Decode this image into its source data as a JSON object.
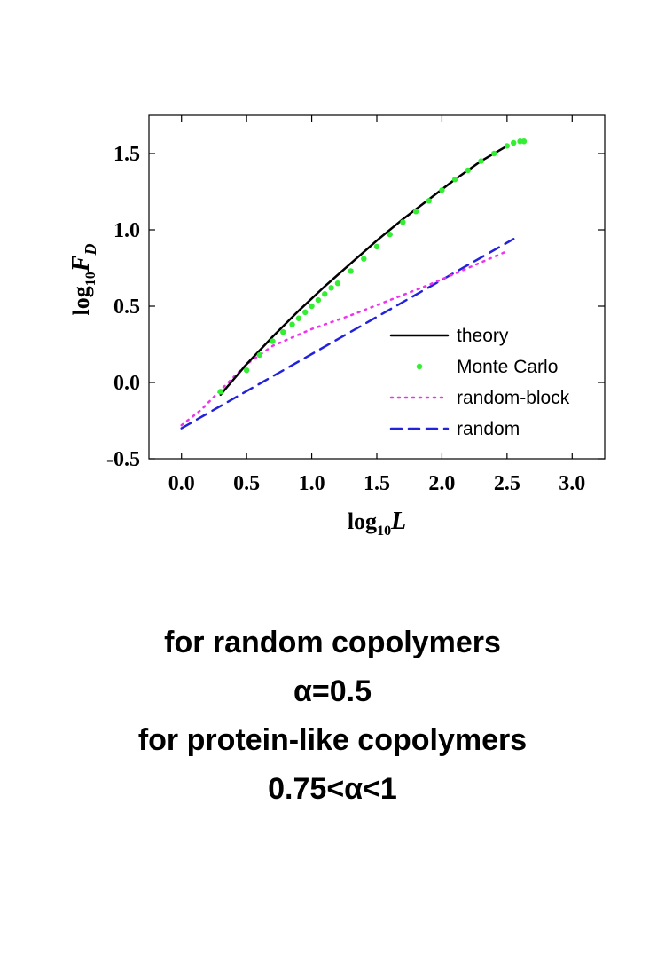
{
  "chart_data": {
    "type": "line",
    "xlabel": {
      "prefix": "log",
      "sub": "10",
      "var": "L"
    },
    "ylabel": {
      "prefix": "log",
      "sub": "10",
      "var": "F",
      "var_sub": "D"
    },
    "xlim": [
      -0.25,
      3.25
    ],
    "ylim": [
      -0.5,
      1.75
    ],
    "xticks": [
      0.0,
      0.5,
      1.0,
      1.5,
      2.0,
      2.5,
      3.0
    ],
    "xtick_labels": [
      "0.0",
      "0.5",
      "1.0",
      "1.5",
      "2.0",
      "2.5",
      "3.0"
    ],
    "yticks": [
      -0.5,
      0.0,
      0.5,
      1.0,
      1.5
    ],
    "ytick_labels": [
      "-0.5",
      "0.0",
      "0.5",
      "1.0",
      "1.5"
    ],
    "grid": false,
    "legend_position": "bottom-right",
    "series": [
      {
        "name": "theory",
        "style": "solid",
        "color": "#000000",
        "x": [
          0.3,
          0.5,
          0.7,
          0.9,
          1.1,
          1.3,
          1.5,
          1.7,
          1.9,
          2.1,
          2.3,
          2.5
        ],
        "y": [
          -0.08,
          0.12,
          0.3,
          0.47,
          0.63,
          0.78,
          0.93,
          1.07,
          1.2,
          1.33,
          1.45,
          1.55
        ]
      },
      {
        "name": "Monte Carlo",
        "style": "points",
        "color": "#33ee33",
        "x": [
          0.3,
          0.5,
          0.6,
          0.7,
          0.78,
          0.85,
          0.9,
          0.95,
          1.0,
          1.05,
          1.1,
          1.15,
          1.2,
          1.3,
          1.4,
          1.5,
          1.6,
          1.7,
          1.8,
          1.9,
          2.0,
          2.1,
          2.2,
          2.3,
          2.4,
          2.5,
          2.55,
          2.6,
          2.63
        ],
        "y": [
          -0.06,
          0.08,
          0.18,
          0.27,
          0.33,
          0.38,
          0.42,
          0.46,
          0.5,
          0.54,
          0.58,
          0.62,
          0.65,
          0.73,
          0.81,
          0.89,
          0.97,
          1.05,
          1.12,
          1.19,
          1.26,
          1.33,
          1.39,
          1.45,
          1.5,
          1.55,
          1.57,
          1.58,
          1.58
        ]
      },
      {
        "name": "random-block",
        "style": "dotted",
        "color": "#ee33ee",
        "x": [
          0.0,
          0.15,
          0.3,
          0.5,
          0.7,
          1.0,
          1.3,
          1.6,
          1.9,
          2.2,
          2.5
        ],
        "y": [
          -0.28,
          -0.18,
          -0.05,
          0.12,
          0.24,
          0.35,
          0.44,
          0.54,
          0.64,
          0.75,
          0.86
        ]
      },
      {
        "name": "random",
        "style": "dashed",
        "color": "#2222dd",
        "x": [
          0.0,
          2.55
        ],
        "y": [
          -0.3,
          0.94
        ]
      }
    ]
  },
  "caption": {
    "line1": "for random copolymers",
    "line2": "α=0.5",
    "line3": "for protein-like copolymers",
    "line4": "0.75<α<1"
  }
}
